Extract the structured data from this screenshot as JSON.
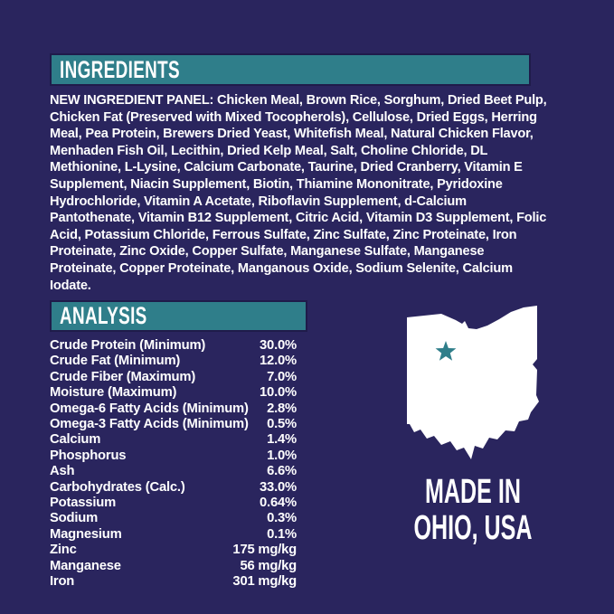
{
  "colors": {
    "background": "#2A255E",
    "banner": "#2F7E8A",
    "banner_border": "#1F1B4A",
    "text": "#FFFFFF",
    "star": "#2F7E8A",
    "state_fill": "#FFFFFF"
  },
  "sections": {
    "ingredients": {
      "title": "INGREDIENTS",
      "text": "NEW INGREDIENT PANEL: Chicken Meal, Brown Rice, Sorghum, Dried Beet Pulp, Chicken Fat (Preserved with Mixed Tocopherols), Cellulose, Dried Eggs, Herring Meal, Pea Protein, Brewers Dried Yeast, Whitefish Meal, Natural Chicken Flavor, Menhaden Fish Oil, Lecithin, Dried Kelp Meal, Salt, Choline Chloride, DL Methionine, L-Lysine, Calcium Carbonate, Taurine, Dried Cranberry, Vitamin E Supplement, Niacin Supplement, Biotin, Thiamine Mononitrate, Pyridoxine Hydrochloride, Vitamin A Acetate, Riboflavin Supplement, d-Calcium Pantothenate, Vitamin B12 Supplement, Citric Acid, Vitamin D3 Supplement, Folic Acid, Potassium Chloride, Ferrous Sulfate, Zinc Sulfate, Zinc Proteinate, Iron Proteinate, Zinc Oxide, Copper Sulfate, Manganese Sulfate, Manganese Proteinate, Copper Proteinate, Manganous Oxide, Sodium Selenite, Calcium Iodate."
    },
    "analysis": {
      "title": "ANALYSIS",
      "rows": [
        {
          "label": "Crude Protein (Minimum)",
          "value": "30.0%"
        },
        {
          "label": "Crude Fat (Minimum)",
          "value": "12.0%"
        },
        {
          "label": "Crude Fiber (Maximum)",
          "value": "7.0%"
        },
        {
          "label": "Moisture (Maximum)",
          "value": "10.0%"
        },
        {
          "label": "Omega-6 Fatty Acids (Minimum)",
          "value": "2.8%"
        },
        {
          "label": "Omega-3 Fatty Acids (Minimum)",
          "value": "0.5%"
        },
        {
          "label": "Calcium",
          "value": "1.4%"
        },
        {
          "label": "Phosphorus",
          "value": "1.0%"
        },
        {
          "label": "Ash",
          "value": "6.6%"
        },
        {
          "label": "Carbohydrates (Calc.)",
          "value": "33.0%"
        },
        {
          "label": "Potassium",
          "value": "0.64%"
        },
        {
          "label": "Sodium",
          "value": "0.3%"
        },
        {
          "label": "Magnesium",
          "value": "0.1%"
        },
        {
          "label": "Zinc",
          "value": "175 mg/kg"
        },
        {
          "label": "Manganese",
          "value": "56 mg/kg"
        },
        {
          "label": "Iron",
          "value": "301 mg/kg"
        }
      ]
    },
    "origin": {
      "line1": "MADE IN",
      "line2": "OHIO, USA",
      "state_icon": "ohio-state-silhouette",
      "marker_icon": "star-location-marker"
    }
  }
}
